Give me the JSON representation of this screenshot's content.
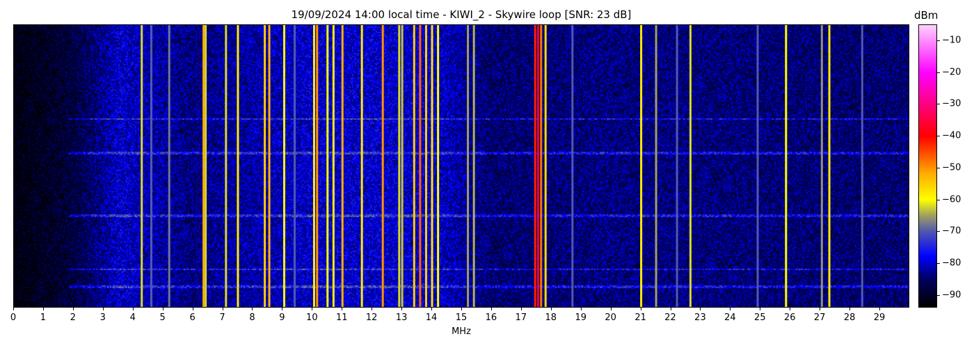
{
  "chart_data": {
    "type": "heatmap",
    "title": "19/09/2024 14:00 local time - KIWI_2 - Skywire loop [SNR: 23 dB]",
    "xlabel": "MHz",
    "ylabel": "",
    "xlim": [
      0,
      30
    ],
    "xticks": [
      0,
      1,
      2,
      3,
      4,
      5,
      6,
      7,
      8,
      9,
      10,
      11,
      12,
      13,
      14,
      15,
      16,
      17,
      18,
      19,
      20,
      21,
      22,
      23,
      24,
      25,
      26,
      27,
      28,
      29
    ],
    "colorbar": {
      "label": "dBm",
      "range": [
        -94,
        -5
      ],
      "ticks": [
        -10,
        -20,
        -30,
        -40,
        -50,
        -60,
        -70,
        -80,
        -90
      ]
    },
    "colormap": [
      {
        "v": -94,
        "color": "#000000"
      },
      {
        "v": -85,
        "color": "#000060"
      },
      {
        "v": -78,
        "color": "#0000ff"
      },
      {
        "v": -70,
        "color": "#5058b0"
      },
      {
        "v": -65,
        "color": "#a0a060"
      },
      {
        "v": -60,
        "color": "#ffff00"
      },
      {
        "v": -52,
        "color": "#ffb000"
      },
      {
        "v": -40,
        "color": "#ff0000"
      },
      {
        "v": -20,
        "color": "#ff00ff"
      },
      {
        "v": -5,
        "color": "#ffd0ff"
      }
    ],
    "noise_floor_dbm": [
      {
        "mhz": 0,
        "dbm": -93
      },
      {
        "mhz": 2,
        "dbm": -88
      },
      {
        "mhz": 3.5,
        "dbm": -80
      },
      {
        "mhz": 6,
        "dbm": -84
      },
      {
        "mhz": 10,
        "dbm": -80
      },
      {
        "mhz": 14,
        "dbm": -80
      },
      {
        "mhz": 16,
        "dbm": -85
      },
      {
        "mhz": 20,
        "dbm": -84
      },
      {
        "mhz": 30,
        "dbm": -85
      }
    ],
    "signals": [
      {
        "mhz": 4.28,
        "dbm": -62
      },
      {
        "mhz": 4.6,
        "dbm": -70
      },
      {
        "mhz": 5.2,
        "dbm": -68
      },
      {
        "mhz": 6.35,
        "dbm": -52
      },
      {
        "mhz": 6.42,
        "dbm": -62
      },
      {
        "mhz": 7.1,
        "dbm": -62
      },
      {
        "mhz": 7.5,
        "dbm": -58
      },
      {
        "mhz": 8.4,
        "dbm": -55
      },
      {
        "mhz": 8.55,
        "dbm": -52
      },
      {
        "mhz": 9.05,
        "dbm": -60
      },
      {
        "mhz": 9.4,
        "dbm": -70
      },
      {
        "mhz": 10.05,
        "dbm": -58
      },
      {
        "mhz": 10.15,
        "dbm": -50
      },
      {
        "mhz": 10.5,
        "dbm": -60
      },
      {
        "mhz": 10.7,
        "dbm": -58
      },
      {
        "mhz": 11.0,
        "dbm": -52
      },
      {
        "mhz": 11.65,
        "dbm": -58
      },
      {
        "mhz": 12.35,
        "dbm": -50
      },
      {
        "mhz": 12.9,
        "dbm": -62
      },
      {
        "mhz": 13.0,
        "dbm": -63
      },
      {
        "mhz": 13.4,
        "dbm": -55
      },
      {
        "mhz": 13.6,
        "dbm": -47
      },
      {
        "mhz": 13.8,
        "dbm": -55
      },
      {
        "mhz": 14.0,
        "dbm": -57
      },
      {
        "mhz": 14.2,
        "dbm": -60
      },
      {
        "mhz": 15.2,
        "dbm": -65
      },
      {
        "mhz": 15.4,
        "dbm": -64
      },
      {
        "mhz": 17.45,
        "dbm": -42
      },
      {
        "mhz": 17.55,
        "dbm": -38
      },
      {
        "mhz": 17.65,
        "dbm": -48
      },
      {
        "mhz": 17.8,
        "dbm": -56
      },
      {
        "mhz": 18.7,
        "dbm": -70
      },
      {
        "mhz": 21.0,
        "dbm": -58
      },
      {
        "mhz": 21.5,
        "dbm": -65
      },
      {
        "mhz": 22.2,
        "dbm": -70
      },
      {
        "mhz": 22.65,
        "dbm": -62
      },
      {
        "mhz": 24.9,
        "dbm": -70
      },
      {
        "mhz": 25.85,
        "dbm": -60
      },
      {
        "mhz": 27.05,
        "dbm": -66
      },
      {
        "mhz": 27.3,
        "dbm": -58
      },
      {
        "mhz": 28.4,
        "dbm": -70
      }
    ],
    "grid": false
  }
}
